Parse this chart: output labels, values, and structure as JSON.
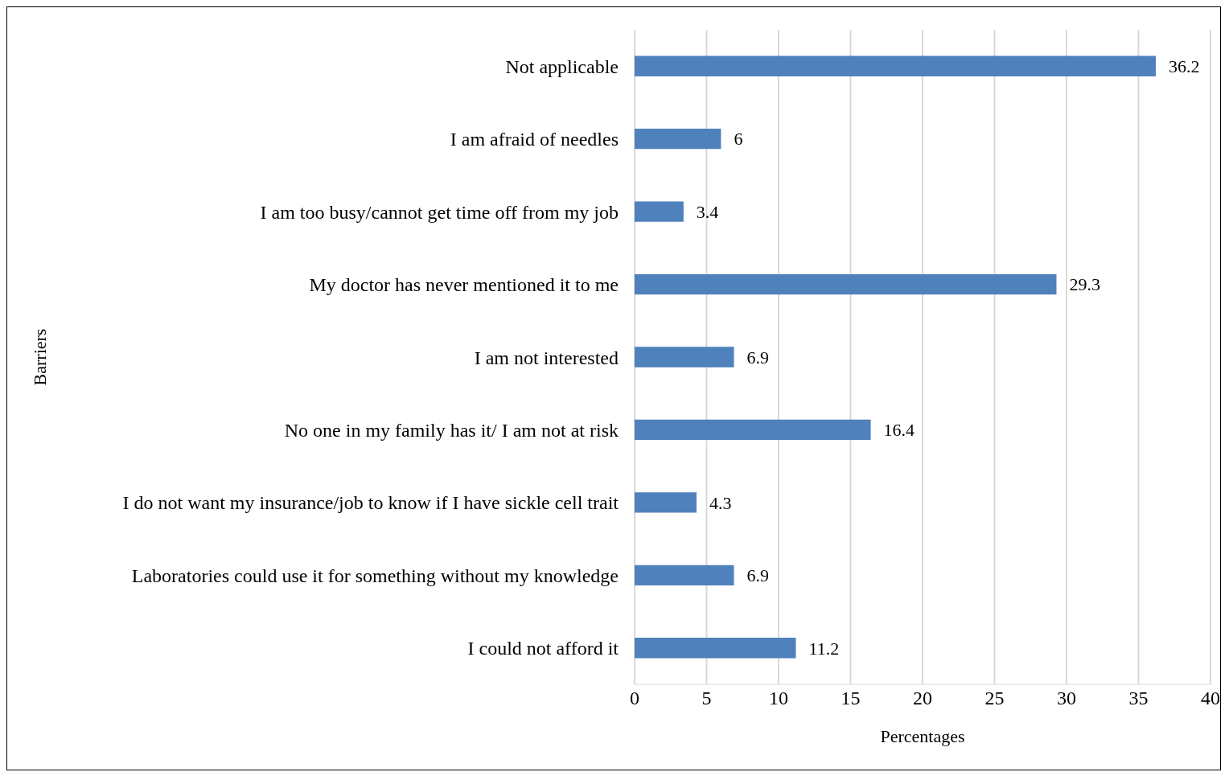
{
  "chart_data": {
    "type": "bar",
    "orientation": "horizontal",
    "xlabel": "Percentages",
    "ylabel": "Barriers",
    "categories": [
      "Not applicable",
      "I am afraid of needles",
      "I am too busy/cannot get time off from my job",
      "My doctor has never mentioned it to me",
      "I am not interested",
      "No one in my family has it/ I am not at risk",
      "I do not want my insurance/job to know if I have sickle cell trait",
      "Laboratories could use it for something without my knowledge",
      "I could not afford it"
    ],
    "values": [
      36.2,
      6,
      3.4,
      29.3,
      6.9,
      16.4,
      4.3,
      6.9,
      11.2
    ],
    "color": "#4f81bd",
    "xlim": [
      0,
      40
    ],
    "xticks": [
      0,
      5,
      10,
      15,
      20,
      25,
      30,
      35,
      40
    ],
    "grid": "x",
    "data_labels": true
  }
}
